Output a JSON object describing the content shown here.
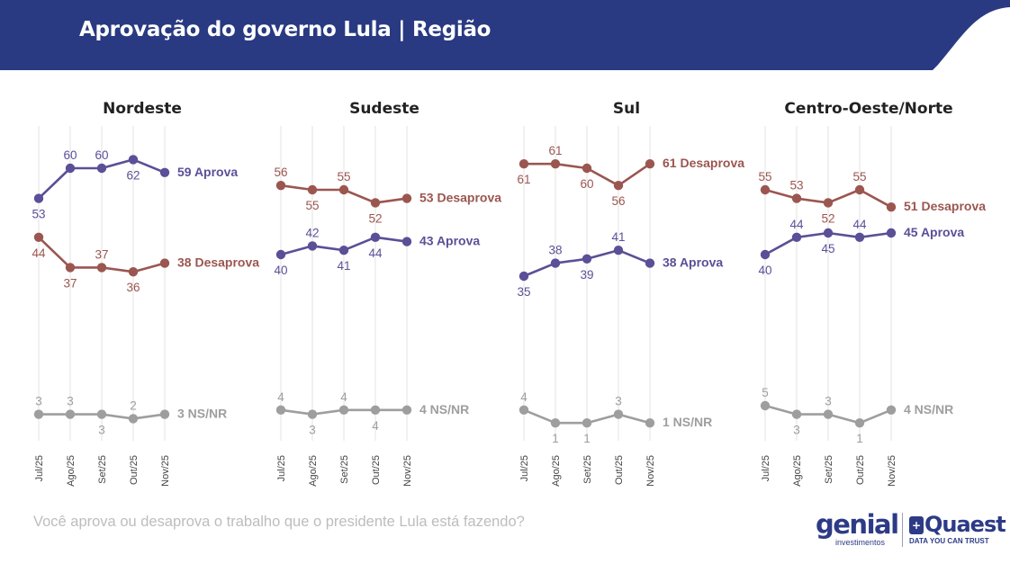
{
  "header": {
    "title": "Aprovação do governo Lula | Região"
  },
  "footer": {
    "question": "Você aprova ou desaprova o trabalho que o presidente Lula está fazendo?",
    "logo_genial": "genial",
    "logo_genial_sub": "investimentos",
    "logo_quaest": "Quaest",
    "logo_quaest_sub": "DATA YOU CAN TRUST"
  },
  "colors": {
    "header_bg": "#293a82",
    "aprova": "#5b4f97",
    "desaprova": "#9b5650",
    "nsnr": "#9e9e9e",
    "gridline": "#e3e3e3"
  },
  "chart_data": [
    {
      "type": "line",
      "title": "Nordeste",
      "categories": [
        "Jul/25",
        "Ago/25",
        "Set/25",
        "Out/25",
        "Nov/25"
      ],
      "ylim": [
        0,
        70
      ],
      "grid": true,
      "series": [
        {
          "name": "Aprova",
          "values": [
            53,
            60,
            60,
            62,
            59
          ],
          "end_label": "59 Aprova",
          "label_pos": [
            "below",
            "above",
            "above",
            "below",
            "right"
          ]
        },
        {
          "name": "Desaprova",
          "values": [
            44,
            37,
            37,
            36,
            38
          ],
          "end_label": "38 Desaprova",
          "label_pos": [
            "below",
            "below",
            "above",
            "below",
            "right"
          ]
        },
        {
          "name": "NS/NR",
          "values": [
            3,
            3,
            3,
            2,
            3
          ],
          "end_label": "3 NS/NR",
          "label_pos": [
            "above",
            "above",
            "below",
            "above",
            "right"
          ]
        }
      ]
    },
    {
      "type": "line",
      "title": "Sudeste",
      "categories": [
        "Jul/25",
        "Ago/25",
        "Set/25",
        "Out/25",
        "Nov/25"
      ],
      "ylim": [
        0,
        70
      ],
      "grid": true,
      "series": [
        {
          "name": "Desaprova",
          "values": [
            56,
            55,
            55,
            52,
            53
          ],
          "end_label": "53 Desaprova",
          "label_pos": [
            "above",
            "below",
            "above",
            "below",
            "right"
          ]
        },
        {
          "name": "Aprova",
          "values": [
            40,
            42,
            41,
            44,
            43
          ],
          "end_label": "43 Aprova",
          "label_pos": [
            "below",
            "above",
            "below",
            "below",
            "right"
          ]
        },
        {
          "name": "NS/NR",
          "values": [
            4,
            3,
            4,
            4,
            4
          ],
          "end_label": "4 NS/NR",
          "label_pos": [
            "above",
            "below",
            "above",
            "below",
            "right"
          ]
        }
      ]
    },
    {
      "type": "line",
      "title": "Sul",
      "categories": [
        "Jul/25",
        "Ago/25",
        "Set/25",
        "Out/25",
        "Nov/25"
      ],
      "ylim": [
        0,
        70
      ],
      "grid": true,
      "series": [
        {
          "name": "Desaprova",
          "values": [
            61,
            61,
            60,
            56,
            61
          ],
          "end_label": "61 Desaprova",
          "label_pos": [
            "below",
            "above",
            "below",
            "below",
            "right"
          ]
        },
        {
          "name": "Aprova",
          "values": [
            35,
            38,
            39,
            41,
            38
          ],
          "end_label": "38 Aprova",
          "label_pos": [
            "below",
            "above",
            "below",
            "above",
            "right"
          ]
        },
        {
          "name": "NS/NR",
          "values": [
            4,
            1,
            1,
            3,
            1
          ],
          "end_label": "1 NS/NR",
          "label_pos": [
            "above",
            "below",
            "below",
            "above",
            "right"
          ]
        }
      ]
    },
    {
      "type": "line",
      "title": "Centro-Oeste/Norte",
      "categories": [
        "Jul/25",
        "Ago/25",
        "Set/25",
        "Out/25",
        "Nov/25"
      ],
      "ylim": [
        0,
        70
      ],
      "grid": true,
      "series": [
        {
          "name": "Desaprova",
          "values": [
            55,
            53,
            52,
            55,
            51
          ],
          "end_label": "51 Desaprova",
          "label_pos": [
            "above",
            "above",
            "below",
            "above",
            "right"
          ]
        },
        {
          "name": "Aprova",
          "values": [
            40,
            44,
            45,
            44,
            45
          ],
          "end_label": "45 Aprova",
          "label_pos": [
            "below",
            "above",
            "below",
            "above",
            "right"
          ]
        },
        {
          "name": "NS/NR",
          "values": [
            5,
            3,
            3,
            1,
            4
          ],
          "end_label": "4 NS/NR",
          "label_pos": [
            "above",
            "below",
            "above",
            "below",
            "right"
          ]
        }
      ]
    }
  ]
}
